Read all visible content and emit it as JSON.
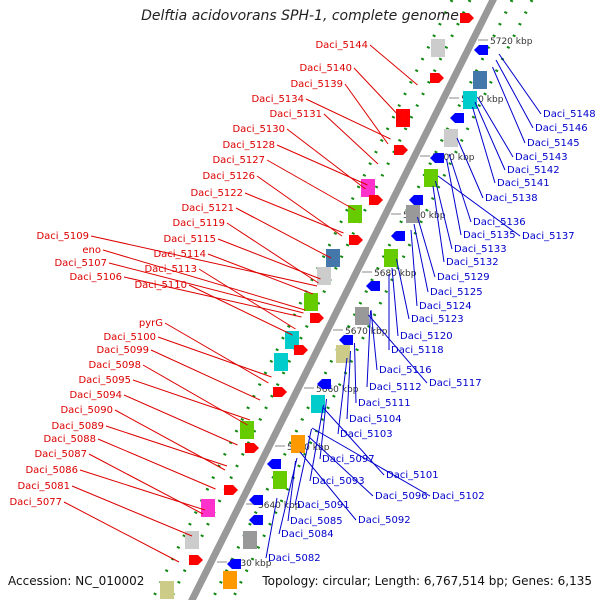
{
  "header": {
    "title": "Delftia acidovorans SPH-1, complete genome"
  },
  "footer": {
    "accession": "Accession: NC_010002",
    "summary": "Topology: circular; Length: 6,767,514 bp; Genes: 6,135"
  },
  "colors": {
    "backbone": "#999999",
    "plus_strand_label": "#dd0000",
    "minus_strand_label": "#0000cc",
    "tick_dot": "#118811"
  },
  "ticks": [
    "5630 kbp",
    "5640 kbp",
    "5650 kbp",
    "5660 kbp",
    "5670 kbp",
    "5680 kbp",
    "5690 kbp",
    "5700 kbp",
    "5710 kbp",
    "5720 kbp"
  ],
  "left_labels": [
    "Daci_5144",
    "Daci_5140",
    "Daci_5139",
    "Daci_5134",
    "Daci_5131",
    "Daci_5130",
    "Daci_5128",
    "Daci_5127",
    "Daci_5126",
    "Daci_5122",
    "Daci_5121",
    "Daci_5119",
    "Daci_5115",
    "Daci_5109",
    "eno",
    "Daci_5114",
    "Daci_5107",
    "Daci_5113",
    "Daci_5106",
    "Daci_5110",
    "pyrG",
    "Daci_5100",
    "Daci_5099",
    "Daci_5098",
    "Daci_5095",
    "Daci_5094",
    "Daci_5090",
    "Daci_5089",
    "Daci_5088",
    "Daci_5087",
    "Daci_5086",
    "Daci_5081",
    "Daci_5077"
  ],
  "right_labels": [
    "Daci_5148",
    "Daci_5146",
    "Daci_5145",
    "Daci_5143",
    "Daci_5142",
    "Daci_5141",
    "Daci_5138",
    "Daci_5136",
    "Daci_5135",
    "Daci_5137",
    "Daci_5133",
    "Daci_5132",
    "Daci_5129",
    "Daci_5125",
    "Daci_5124",
    "Daci_5123",
    "Daci_5120",
    "Daci_5118",
    "Daci_5116",
    "Daci_5117",
    "Daci_5112",
    "Daci_5111",
    "Daci_5104",
    "Daci_5103",
    "Daci_5097",
    "Daci_5101",
    "Daci_5093",
    "Daci_5096",
    "Daci_5102",
    "Daci_5091",
    "Daci_5085",
    "Daci_5092",
    "Daci_5084",
    "Daci_5082"
  ],
  "gene_colors": [
    "#ff0000",
    "#0000ff",
    "#cccccc",
    "#999999",
    "#66cc00",
    "#00cccc",
    "#ff33cc",
    "#ff9900",
    "#cccc88",
    "#4477aa",
    "#006600",
    "#aa66cc"
  ]
}
